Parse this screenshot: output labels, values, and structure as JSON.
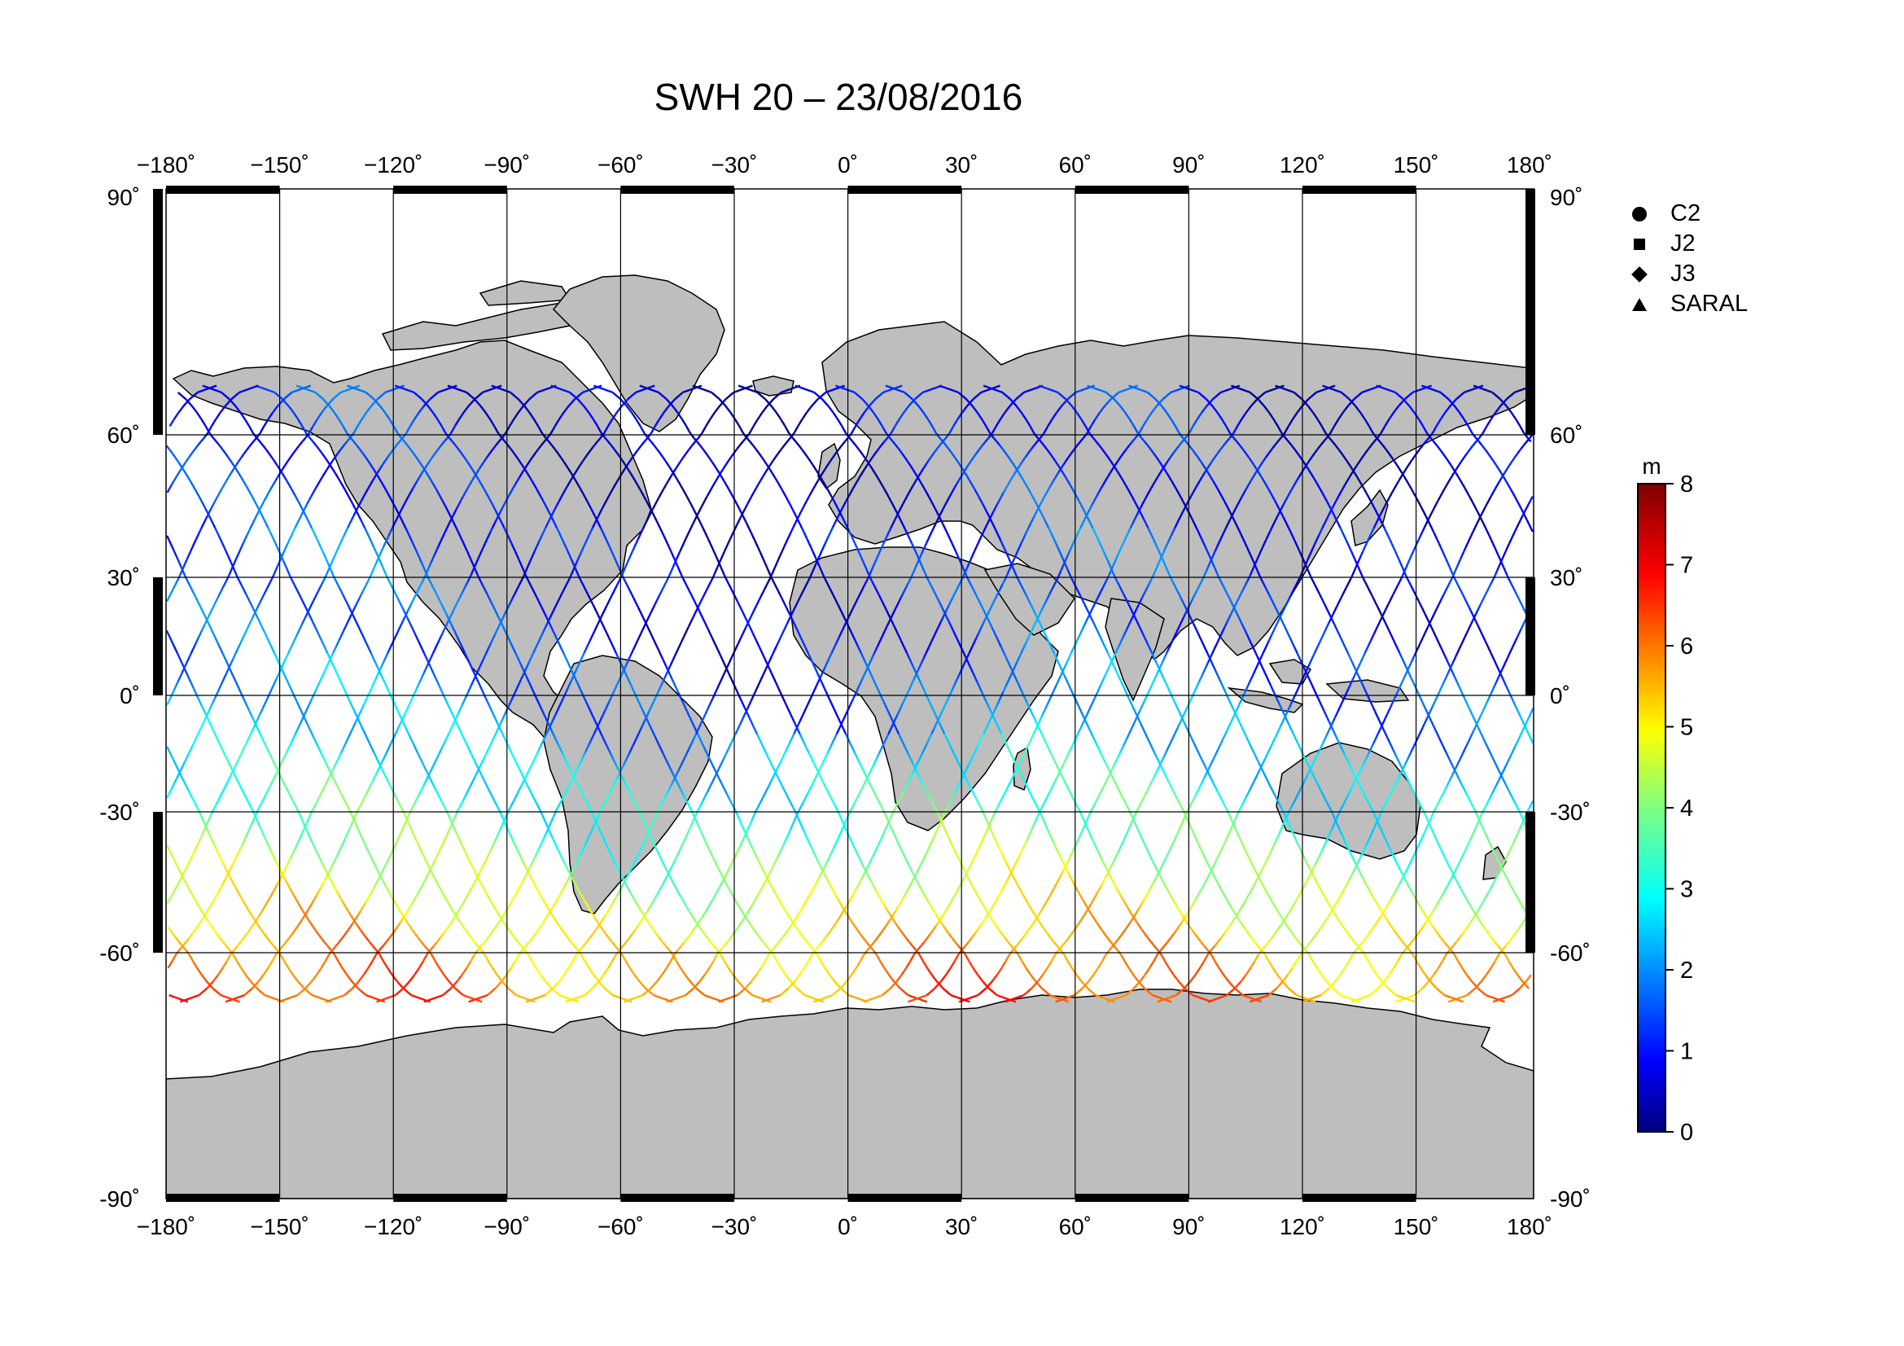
{
  "title": "SWH 20 – 23/08/2016",
  "lon_ticks": [
    "−180˚",
    "−150˚",
    "−120˚",
    "−90˚",
    "−60˚",
    "−30˚",
    "0˚",
    "30˚",
    "60˚",
    "90˚",
    "120˚",
    "150˚",
    "180˚"
  ],
  "lat_ticks_left": [
    "90˚",
    "60˚",
    "30˚",
    "0˚",
    "-30˚",
    "-60˚",
    "-90˚"
  ],
  "lat_ticks_right": [
    "90˚",
    "60˚",
    "30˚",
    "0˚",
    "-30˚",
    "-60˚",
    "-90˚"
  ],
  "legend": [
    {
      "label": "C2",
      "symbol": "circle"
    },
    {
      "label": "J2",
      "symbol": "square"
    },
    {
      "label": "J3",
      "symbol": "diamond"
    },
    {
      "label": "SARAL",
      "symbol": "triangle"
    }
  ],
  "colorbar": {
    "unit": "m",
    "ticks": [
      "0",
      "1",
      "2",
      "3",
      "4",
      "5",
      "6",
      "7",
      "8"
    ],
    "min": 0,
    "max": 8,
    "colormap": "jet"
  },
  "colors": {
    "land": "#bebebe",
    "ocean": "#ffffff",
    "grid": "#000000"
  }
}
